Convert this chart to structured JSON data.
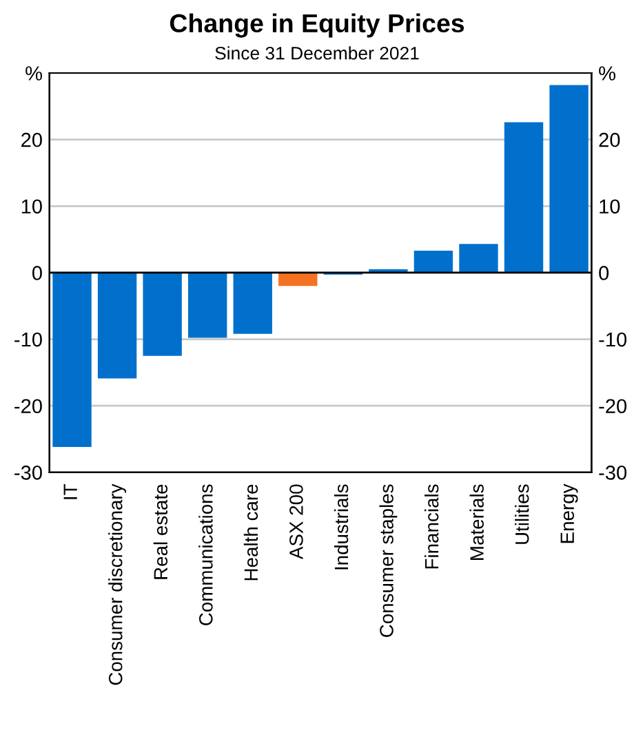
{
  "chart_data": {
    "type": "bar",
    "title": "Change in Equity Prices",
    "subtitle": "Since 31 December 2021",
    "categories": [
      "IT",
      "Consumer discretionary",
      "Real estate",
      "Communications",
      "Health care",
      "ASX 200",
      "Industrials",
      "Consumer staples",
      "Financials",
      "Materials",
      "Utilities",
      "Energy"
    ],
    "values": [
      -26.2,
      -15.9,
      -12.5,
      -9.8,
      -9.2,
      -2.0,
      -0.3,
      0.5,
      3.3,
      4.3,
      22.6,
      28.2
    ],
    "colors": [
      "#0070cc",
      "#0070cc",
      "#0070cc",
      "#0070cc",
      "#0070cc",
      "#f57223",
      "#0070cc",
      "#0070cc",
      "#0070cc",
      "#0070cc",
      "#0070cc",
      "#0070cc"
    ],
    "ylim": [
      -30,
      30
    ],
    "yticks": [
      -30,
      -20,
      -10,
      0,
      10,
      20,
      {
        "value": 30,
        "label": "%"
      }
    ],
    "y2lim": [
      -30,
      30
    ],
    "y2ticks": [
      -30,
      -20,
      -10,
      0,
      10,
      20,
      {
        "value": 30,
        "label": "%"
      }
    ],
    "grid": "y"
  }
}
